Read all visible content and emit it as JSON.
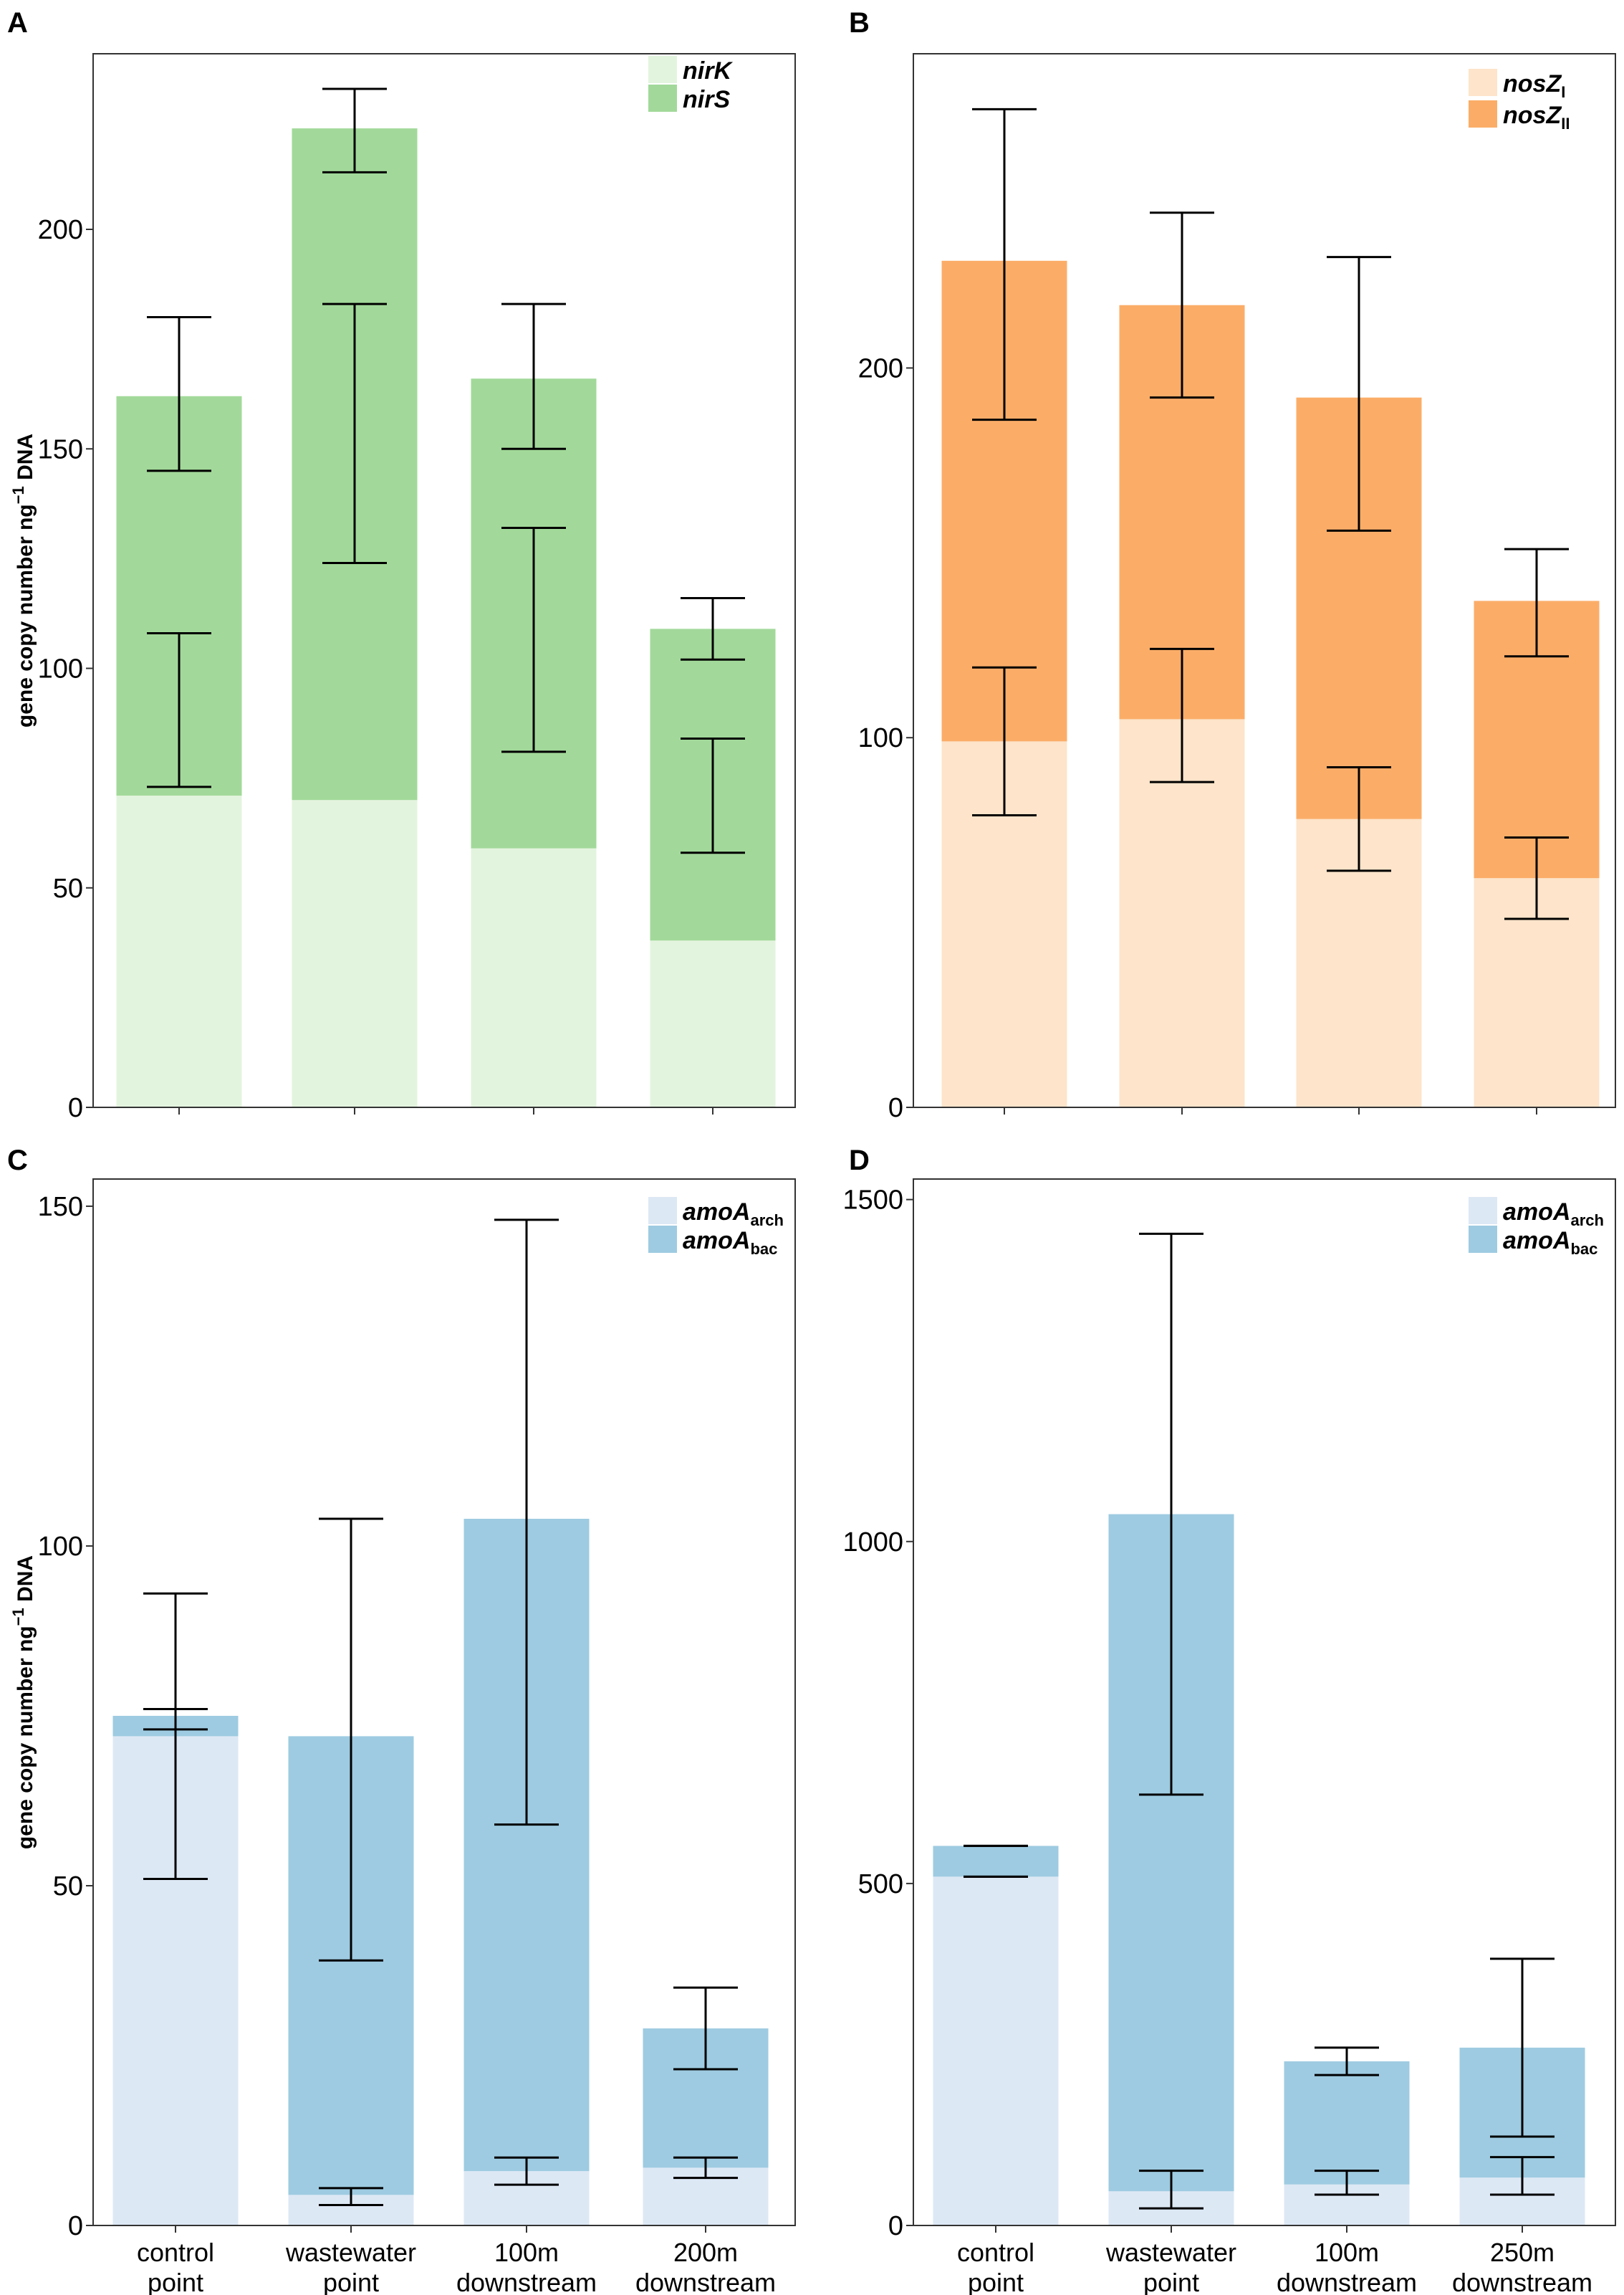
{
  "figure": {
    "ylabel_main": "gene copy number ng",
    "ylabel_sup": "−1",
    "ylabel_tail": " DNA"
  },
  "chart_data": [
    {
      "panel": "A",
      "type": "bar",
      "stacked": true,
      "categories": [
        "",
        "",
        "",
        ""
      ],
      "ylim": [
        0,
        240
      ],
      "yticks": [
        0,
        50,
        100,
        150,
        200
      ],
      "ylabel": "gene copy number ng−1 DNA",
      "legend_position": "top-right",
      "series": [
        {
          "name": "nirK",
          "legend_main": "nirK",
          "legend_sub": "",
          "color": "#e3f4de",
          "values": [
            71,
            70,
            59,
            38
          ],
          "err_low": [
            145,
            213,
            150,
            102
          ],
          "err_high": [
            180,
            232,
            183,
            116
          ]
        },
        {
          "name": "nirS",
          "legend_main": "nirS",
          "legend_sub": "",
          "color": "#a2d99a",
          "values": [
            91,
            153,
            107,
            71
          ],
          "err_low": [
            73,
            124,
            81,
            58
          ],
          "err_high": [
            108,
            183,
            132,
            84
          ]
        }
      ]
    },
    {
      "panel": "B",
      "type": "bar",
      "stacked": true,
      "categories": [
        "",
        "",
        "",
        ""
      ],
      "ylim": [
        0,
        285
      ],
      "yticks": [
        0,
        100,
        200
      ],
      "ylabel": "",
      "legend_position": "top-right",
      "series": [
        {
          "name": "nosZI",
          "legend_main": "nosZ",
          "legend_sub": "I",
          "color": "#fde4ca",
          "values": [
            99,
            105,
            78,
            62
          ],
          "err_low": [
            79,
            88,
            64,
            51
          ],
          "err_high": [
            119,
            124,
            92,
            73
          ]
        },
        {
          "name": "nosZII",
          "legend_main": "nosZ",
          "legend_sub": "II",
          "color": "#fbad68",
          "values": [
            130,
            112,
            114,
            75
          ],
          "err_low": [
            186,
            192,
            156,
            122
          ],
          "err_high": [
            270,
            242,
            230,
            151
          ]
        }
      ]
    },
    {
      "panel": "C",
      "type": "bar",
      "stacked": true,
      "categories": [
        "control\npoint",
        "wastewater\npoint",
        "100m\ndownstream",
        "200m\ndownstream"
      ],
      "ylim": [
        0,
        154
      ],
      "yticks": [
        0,
        50,
        100,
        150
      ],
      "ylabel": "gene copy number ng−1 DNA",
      "legend_position": "top-right",
      "series": [
        {
          "name": "amoAarch",
          "legend_main": "amoA",
          "legend_sub": "arch",
          "color": "#dde8f5",
          "values": [
            72,
            4.5,
            8,
            8.5
          ],
          "err_low": [
            51,
            3,
            6,
            7
          ],
          "err_high": [
            93,
            5.5,
            10,
            10
          ]
        },
        {
          "name": "amoAbac",
          "legend_main": "amoA",
          "legend_sub": "bac",
          "color": "#9ecbe1",
          "values": [
            3,
            67.5,
            96,
            20.5
          ],
          "err_low": [
            73,
            39,
            59,
            23
          ],
          "err_high": [
            76,
            104,
            148,
            35
          ]
        }
      ]
    },
    {
      "panel": "D",
      "type": "bar",
      "stacked": true,
      "categories": [
        "control\npoint",
        "wastewater\npoint",
        "100m\ndownstream",
        "250m\ndownstream"
      ],
      "ylim": [
        0,
        1530
      ],
      "yticks": [
        0,
        500,
        1000,
        1500
      ],
      "ylabel": "",
      "legend_position": "top-right",
      "series": [
        {
          "name": "amoAarch",
          "legend_main": "amoA",
          "legend_sub": "arch",
          "color": "#dde8f5",
          "values": [
            510,
            50,
            60,
            70
          ],
          "err_low": [
            510,
            25,
            45,
            45
          ],
          "err_high": [
            510,
            80,
            80,
            100
          ]
        },
        {
          "name": "amoAbac",
          "legend_main": "amoA",
          "legend_sub": "bac",
          "color": "#9ecbe1",
          "values": [
            45,
            990,
            180,
            190
          ],
          "err_low": [
            555,
            630,
            220,
            130
          ],
          "err_high": [
            555,
            1450,
            260,
            390
          ]
        }
      ]
    }
  ]
}
